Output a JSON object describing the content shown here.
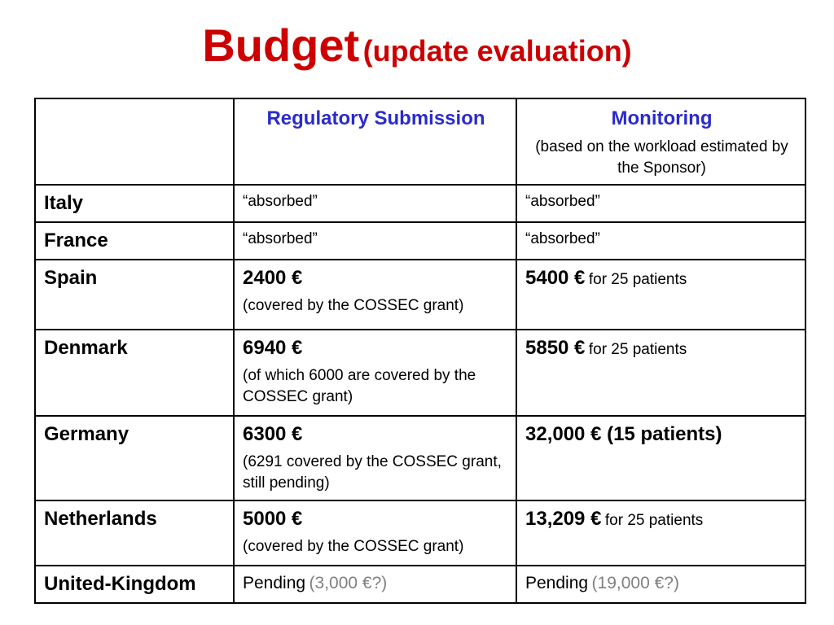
{
  "title": {
    "main": "Budget",
    "sub": "(update evaluation)"
  },
  "colors": {
    "title": "#cc0000",
    "header": "#2b2bcc",
    "pending_estimate": "#808080"
  },
  "table": {
    "header": {
      "regulatory": "Regulatory Submission",
      "monitoring": "Monitoring",
      "monitoring_note": "(based on the workload estimated by the Sponsor)"
    },
    "rows": [
      {
        "country": "Italy",
        "regulatory": "“absorbed”",
        "monitoring": "“absorbed”"
      },
      {
        "country": "France",
        "regulatory": "“absorbed”",
        "monitoring": "“absorbed”"
      },
      {
        "country": "Spain",
        "regulatory": "2400 €",
        "regulatory_note": "(covered by the COSSEC grant)",
        "monitoring": "5400 €",
        "monitoring_suffix": "for 25 patients"
      },
      {
        "country": "Denmark",
        "regulatory": "6940 €",
        "regulatory_note": "(of which 6000 are covered by the COSSEC grant)",
        "monitoring": "5850 €",
        "monitoring_suffix": "for 25 patients"
      },
      {
        "country": "Germany",
        "regulatory": "6300 €",
        "regulatory_note": "(6291 covered by the COSSEC grant, still pending)",
        "monitoring": "32,000 € (15 patients)"
      },
      {
        "country": "Netherlands",
        "regulatory": "5000 €",
        "regulatory_note": "(covered by the COSSEC grant)",
        "monitoring": "13,209 €",
        "monitoring_suffix": "for 25 patients"
      },
      {
        "country": "United-Kingdom",
        "regulatory": "Pending",
        "regulatory_estimate": "(3,000 €?)",
        "monitoring": "Pending",
        "monitoring_estimate": "(19,000 €?)"
      }
    ]
  }
}
